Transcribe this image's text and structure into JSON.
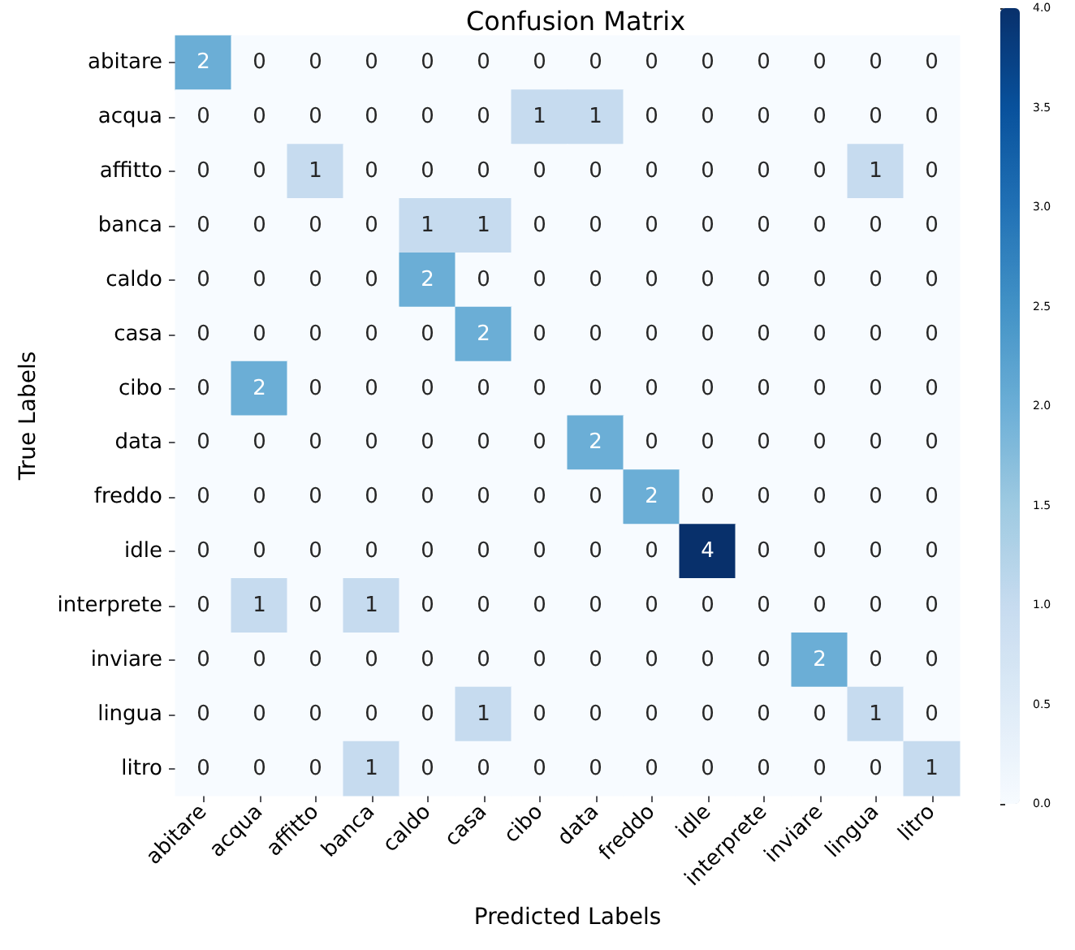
{
  "chart_data": {
    "type": "heatmap",
    "title": "Confusion Matrix",
    "xlabel": "Predicted Labels",
    "ylabel": "True Labels",
    "categories": [
      "abitare",
      "acqua",
      "affitto",
      "banca",
      "caldo",
      "casa",
      "cibo",
      "data",
      "freddo",
      "idle",
      "interprete",
      "inviare",
      "lingua",
      "litro"
    ],
    "y_categories": [
      "abitare",
      "acqua",
      "affitto",
      "banca",
      "caldo",
      "casa",
      "cibo",
      "data",
      "freddo",
      "idle",
      "interprete",
      "inviare",
      "lingua",
      "litro"
    ],
    "cells": [
      [
        2,
        0,
        0,
        0,
        0,
        0,
        0,
        0,
        0,
        0,
        0,
        0,
        0,
        0
      ],
      [
        0,
        0,
        0,
        0,
        0,
        0,
        1,
        1,
        0,
        0,
        0,
        0,
        0,
        0
      ],
      [
        0,
        0,
        1,
        0,
        0,
        0,
        0,
        0,
        0,
        0,
        0,
        0,
        1,
        0
      ],
      [
        0,
        0,
        0,
        0,
        1,
        1,
        0,
        0,
        0,
        0,
        0,
        0,
        0,
        0
      ],
      [
        0,
        0,
        0,
        0,
        2,
        0,
        0,
        0,
        0,
        0,
        0,
        0,
        0,
        0
      ],
      [
        0,
        0,
        0,
        0,
        0,
        2,
        0,
        0,
        0,
        0,
        0,
        0,
        0,
        0
      ],
      [
        0,
        2,
        0,
        0,
        0,
        0,
        0,
        0,
        0,
        0,
        0,
        0,
        0,
        0
      ],
      [
        0,
        0,
        0,
        0,
        0,
        0,
        0,
        2,
        0,
        0,
        0,
        0,
        0,
        0
      ],
      [
        0,
        0,
        0,
        0,
        0,
        0,
        0,
        0,
        2,
        0,
        0,
        0,
        0,
        0
      ],
      [
        0,
        0,
        0,
        0,
        0,
        0,
        0,
        0,
        0,
        4,
        0,
        0,
        0,
        0
      ],
      [
        0,
        1,
        0,
        1,
        0,
        0,
        0,
        0,
        0,
        0,
        0,
        0,
        0,
        0
      ],
      [
        0,
        0,
        0,
        0,
        0,
        0,
        0,
        0,
        0,
        0,
        0,
        2,
        0,
        0
      ],
      [
        0,
        0,
        0,
        0,
        0,
        1,
        0,
        0,
        0,
        0,
        0,
        0,
        1,
        0
      ],
      [
        0,
        0,
        0,
        1,
        0,
        0,
        0,
        0,
        0,
        0,
        0,
        0,
        0,
        1
      ]
    ],
    "clim": [
      0,
      4
    ],
    "cticks": [
      {
        "value": 0,
        "label": "0.0"
      },
      {
        "value": 0.5,
        "label": "0.5"
      },
      {
        "value": 1,
        "label": "1.0"
      },
      {
        "value": 1.5,
        "label": "1.5"
      },
      {
        "value": 2,
        "label": "2.0"
      },
      {
        "value": 2.5,
        "label": "2.5"
      },
      {
        "value": 3,
        "label": "3.0"
      },
      {
        "value": 3.5,
        "label": "3.5"
      },
      {
        "value": 4,
        "label": "4.0"
      }
    ],
    "data_labels": true
  }
}
